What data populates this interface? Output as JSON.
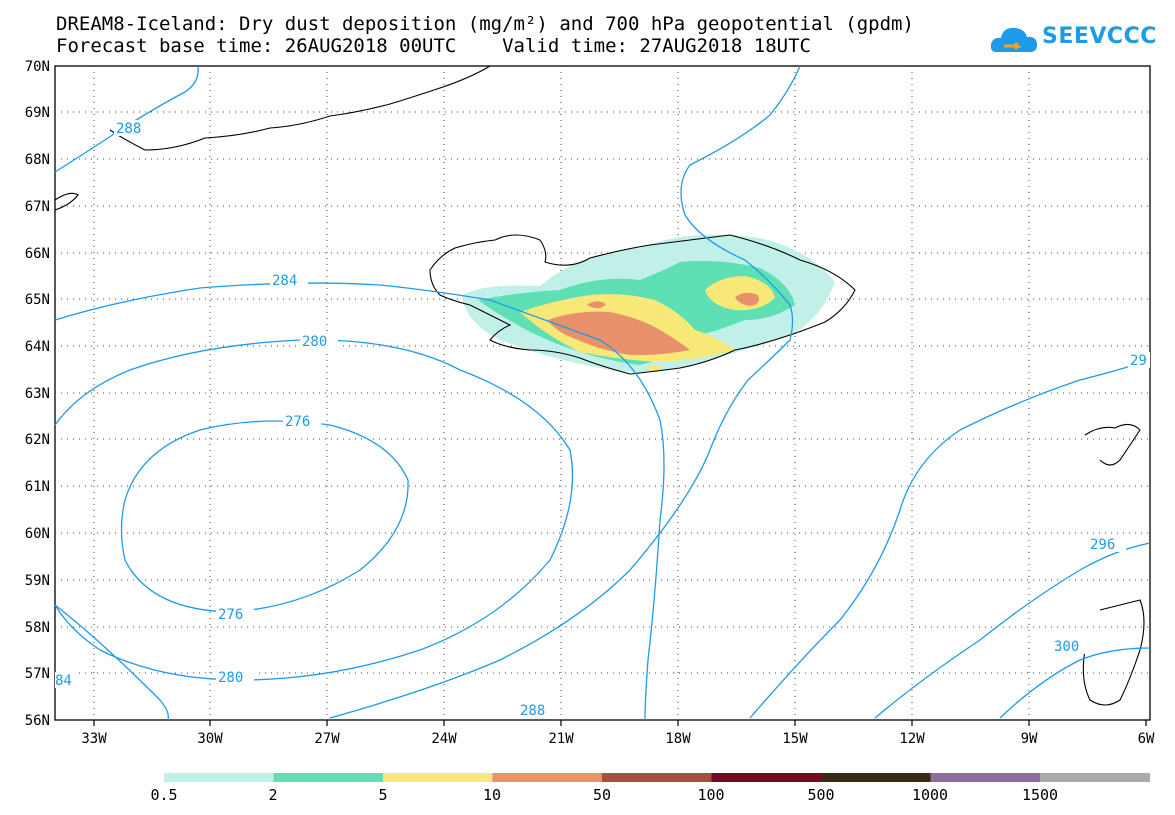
{
  "title": {
    "line1": "DREAM8-Iceland: Dry dust deposition (mg/m²) and 700 hPa geopotential (gpdm)",
    "line2": "Forecast base time: 26AUG2018 00UTC    Valid time: 27AUG2018 18UTC"
  },
  "logo": {
    "text": "SEEVCCC",
    "icon": "cloud-logo-icon",
    "color": "#1e9be8"
  },
  "map": {
    "lat_labels": [
      "70N",
      "69N",
      "68N",
      "67N",
      "66N",
      "65N",
      "64N",
      "63N",
      "62N",
      "61N",
      "60N",
      "59N",
      "58N",
      "57N",
      "56N"
    ],
    "lon_labels": [
      "33W",
      "30W",
      "27W",
      "24W",
      "21W",
      "18W",
      "15W",
      "12W",
      "9W",
      "6W"
    ],
    "contour_color": "#1e9be8",
    "contour_labels": [
      "288",
      "284",
      "280",
      "276",
      "276",
      "280",
      "288",
      "296",
      "300",
      "29",
      "84"
    ]
  },
  "colorbar": {
    "labels": [
      "0.5",
      "2",
      "5",
      "10",
      "50",
      "100",
      "500",
      "1000",
      "1500"
    ],
    "colors": [
      "#c1f0e9",
      "#5ee0b4",
      "#f8e878",
      "#e8916a",
      "#a84d40",
      "#7b0823",
      "#3c2a16",
      "#8e6c9c",
      "#a9a9a9"
    ]
  }
}
